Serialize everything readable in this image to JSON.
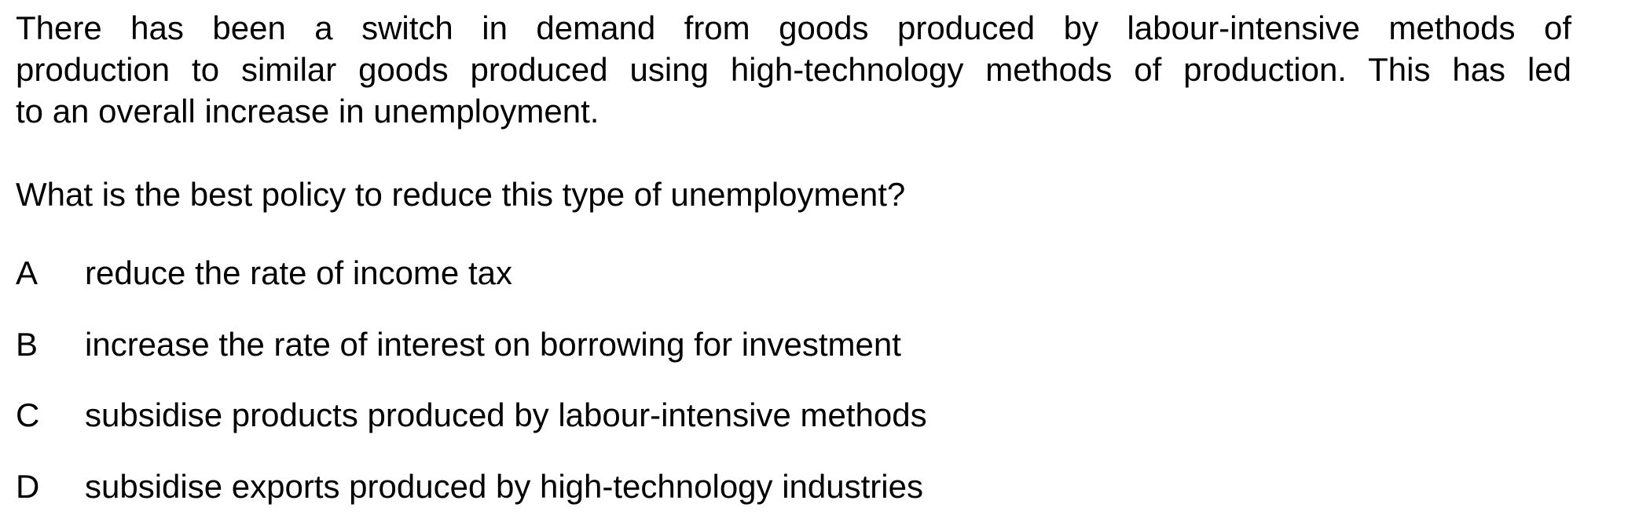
{
  "stem": {
    "lines": [
      "There has been a switch in demand from goods produced by labour-intensive methods of",
      "production to similar goods produced using high-technology methods of production. This has led",
      "to an overall increase in unemployment."
    ]
  },
  "question": "What is the best policy to reduce this type of unemployment?",
  "options": [
    {
      "letter": "A",
      "text": "reduce the rate of income tax"
    },
    {
      "letter": "B",
      "text": "increase the rate of interest on borrowing for investment"
    },
    {
      "letter": "C",
      "text": "subsidise products produced by labour-intensive methods"
    },
    {
      "letter": "D",
      "text": "subsidise exports produced by high-technology industries"
    }
  ]
}
